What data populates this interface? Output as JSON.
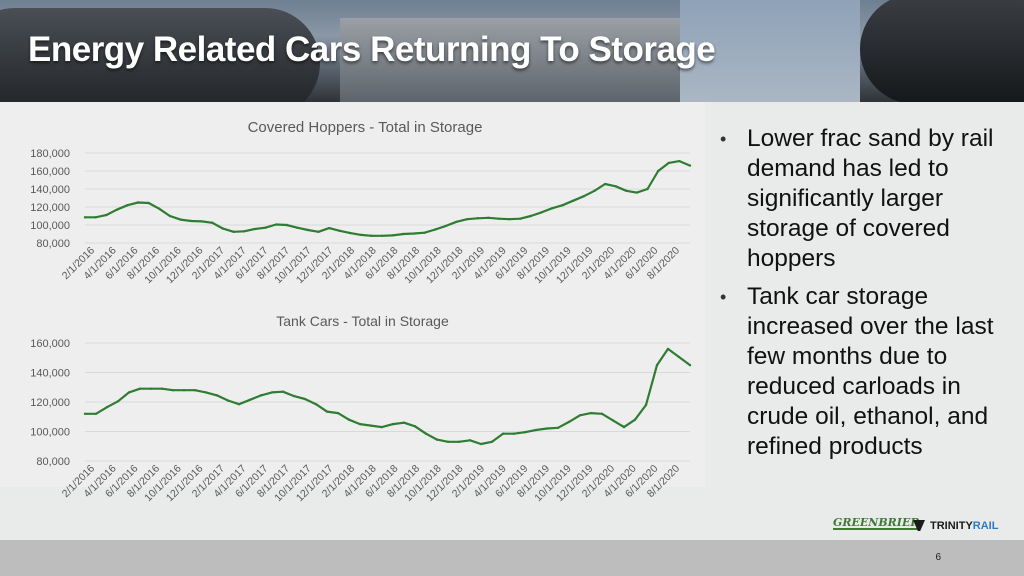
{
  "slide": {
    "title": "Energy Related Cars Returning To Storage",
    "page_number": "6"
  },
  "bullets": [
    "Lower frac sand by rail demand has led to significantly larger storage of covered hoppers",
    "Tank car storage increased over the last few months due to reduced carloads in crude oil, ethanol, and refined products"
  ],
  "logos": {
    "greenbrier": "GREENBRIER",
    "trinity_a": "TRINITY",
    "trinity_b": "RAIL"
  },
  "colors": {
    "line": "#2e7d32",
    "grid": "#d9d9d9",
    "axis_text": "#595959"
  },
  "chart_data": [
    {
      "type": "line",
      "title": "Covered Hoppers - Total in Storage",
      "ylim": [
        80000,
        180000
      ],
      "yticks": [
        80000,
        100000,
        120000,
        140000,
        160000,
        180000
      ],
      "ytick_labels": [
        "80,000",
        "100,000",
        "120,000",
        "140,000",
        "160,000",
        "180,000"
      ],
      "x_tick_labels": [
        "2/1/2016",
        "4/1/2016",
        "6/1/2016",
        "8/1/2016",
        "10/1/2016",
        "12/1/2016",
        "2/1/2017",
        "4/1/2017",
        "6/1/2017",
        "8/1/2017",
        "10/1/2017",
        "12/1/2017",
        "2/1/2018",
        "4/1/2018",
        "6/1/2018",
        "8/1/2018",
        "10/1/2018",
        "12/1/2018",
        "2/1/2019",
        "4/1/2019",
        "6/1/2019",
        "8/1/2019",
        "10/1/2019",
        "12/1/2019",
        "2/1/2020",
        "4/1/2020",
        "6/1/2020",
        "8/1/2020"
      ],
      "grid": true,
      "series": [
        {
          "values": [
            108500,
            108500,
            111000,
            117000,
            122000,
            125000,
            124500,
            118000,
            110000,
            106000,
            104500,
            104000,
            102500,
            96000,
            92500,
            93000,
            95500,
            97000,
            100500,
            100000,
            97000,
            94500,
            92500,
            96500,
            93500,
            91000,
            89000,
            88000,
            88000,
            88500,
            90000,
            90500,
            91500,
            95000,
            99000,
            103500,
            106500,
            107500,
            108000,
            107000,
            106500,
            107000,
            110000,
            114000,
            118500,
            122000,
            127000,
            132000,
            138000,
            145500,
            143000,
            138000,
            136000,
            140000,
            160000,
            169000,
            171000,
            166000
          ]
        }
      ]
    },
    {
      "type": "line",
      "title": "Tank Cars - Total in Storage",
      "ylim": [
        80000,
        160000
      ],
      "yticks": [
        80000,
        100000,
        120000,
        140000,
        160000
      ],
      "ytick_labels": [
        "80,000",
        "100,000",
        "120,000",
        "140,000",
        "160,000"
      ],
      "x_tick_labels": [
        "2/1/2016",
        "4/1/2016",
        "6/1/2016",
        "8/1/2016",
        "10/1/2016",
        "12/1/2016",
        "2/1/2017",
        "4/1/2017",
        "6/1/2017",
        "8/1/2017",
        "10/1/2017",
        "12/1/2017",
        "2/1/2018",
        "4/1/2018",
        "6/1/2018",
        "8/1/2018",
        "10/1/2018",
        "12/1/2018",
        "2/1/2019",
        "4/1/2019",
        "6/1/2019",
        "8/1/2019",
        "10/1/2019",
        "12/1/2019",
        "2/1/2020",
        "4/1/2020",
        "6/1/2020",
        "8/1/2020"
      ],
      "grid": true,
      "series": [
        {
          "values": [
            112000,
            112000,
            116500,
            120500,
            126500,
            129000,
            129000,
            129000,
            128000,
            128000,
            128000,
            126500,
            124500,
            121000,
            118500,
            121500,
            124500,
            126500,
            127000,
            124000,
            122000,
            118500,
            113500,
            112500,
            108000,
            105000,
            104000,
            103000,
            105000,
            106000,
            103500,
            98500,
            94500,
            93000,
            93000,
            94000,
            91500,
            93000,
            98500,
            98500,
            99500,
            101000,
            102000,
            102500,
            106500,
            111000,
            112500,
            112000,
            107500,
            103000,
            108000,
            118000,
            145000,
            156000,
            150500,
            145000
          ]
        }
      ]
    }
  ]
}
